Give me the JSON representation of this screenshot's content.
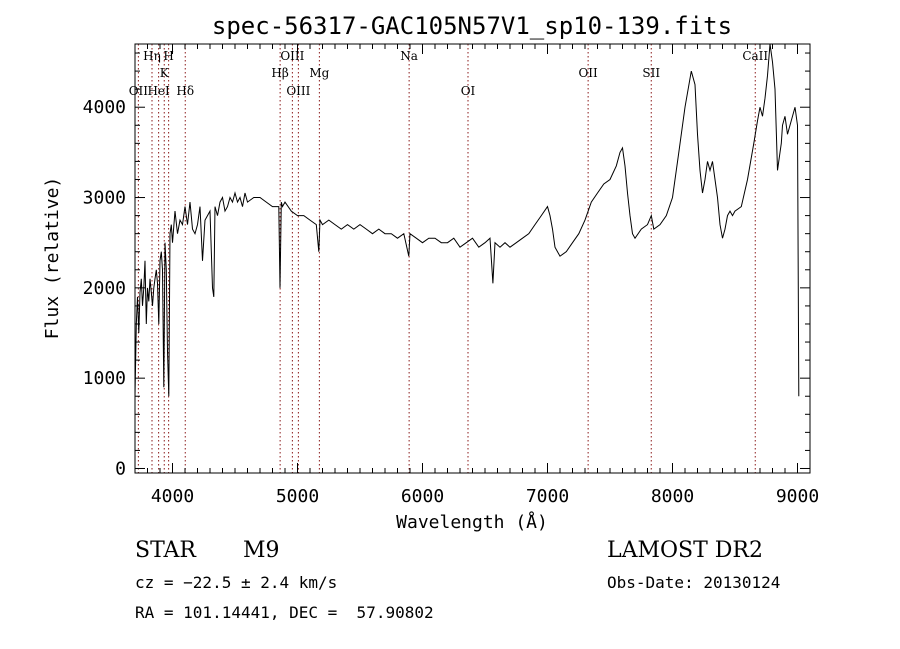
{
  "chart_data": {
    "type": "line",
    "title": "spec-56317-GAC105N57V1_sp10-139.fits",
    "xlabel": "Wavelength (Å)",
    "ylabel": "Flux (relative)",
    "xlim": [
      3700,
      9100
    ],
    "ylim": [
      -50,
      4700
    ],
    "xticks": [
      4000,
      5000,
      6000,
      7000,
      8000,
      9000
    ],
    "yticks": [
      0,
      1000,
      2000,
      3000,
      4000
    ],
    "grid": false,
    "line_color": "#000000",
    "marker_color": "#8b1a1a",
    "lines": [
      {
        "label": "Hη",
        "wave": 3836,
        "row": 0
      },
      {
        "label": "H",
        "wave": 3969,
        "row": 0
      },
      {
        "label": "K",
        "wave": 3934,
        "row": 1
      },
      {
        "label": "OII",
        "wave": 3727,
        "row": 2
      },
      {
        "label": "HeI",
        "wave": 3889,
        "row": 2
      },
      {
        "label": "Hδ",
        "wave": 4102,
        "row": 2
      },
      {
        "label": "OIII",
        "wave": 4959,
        "row": 0
      },
      {
        "label": "Hβ",
        "wave": 4861,
        "row": 1
      },
      {
        "label": "Mg",
        "wave": 5175,
        "row": 1
      },
      {
        "label": "OIII",
        "wave": 5007,
        "row": 2
      },
      {
        "label": "Na",
        "wave": 5893,
        "row": 0
      },
      {
        "label": "OI",
        "wave": 6364,
        "row": 2
      },
      {
        "label": "OII",
        "wave": 7325,
        "row": 1
      },
      {
        "label": "SII",
        "wave": 7830,
        "row": 1
      },
      {
        "label": "CaII",
        "wave": 8662,
        "row": 0
      }
    ],
    "series": [
      {
        "x": [
          3700,
          3710,
          3720,
          3730,
          3740,
          3750,
          3760,
          3770,
          3780,
          3790,
          3800,
          3810,
          3820,
          3830,
          3840,
          3850,
          3860,
          3870,
          3880,
          3890,
          3900,
          3910,
          3920,
          3930,
          3940,
          3950,
          3960,
          3970,
          3980,
          3990,
          4000,
          4020,
          4040,
          4060,
          4080,
          4100,
          4120,
          4140,
          4160,
          4180,
          4200,
          4220,
          4240,
          4260,
          4280,
          4300,
          4320,
          4330,
          4340,
          4360,
          4380,
          4400,
          4420,
          4440,
          4460,
          4480,
          4500,
          4520,
          4540,
          4560,
          4580,
          4600,
          4650,
          4700,
          4750,
          4800,
          4850,
          4860,
          4870,
          4880,
          4900,
          4950,
          5000,
          5050,
          5100,
          5150,
          5170,
          5180,
          5200,
          5250,
          5300,
          5350,
          5400,
          5450,
          5500,
          5550,
          5600,
          5650,
          5700,
          5750,
          5800,
          5850,
          5890,
          5900,
          5950,
          6000,
          6050,
          6100,
          6150,
          6200,
          6250,
          6300,
          6350,
          6400,
          6450,
          6500,
          6540,
          6563,
          6580,
          6620,
          6660,
          6700,
          6750,
          6800,
          6850,
          6900,
          6950,
          7000,
          7020,
          7040,
          7060,
          7080,
          7100,
          7150,
          7200,
          7250,
          7300,
          7350,
          7400,
          7450,
          7500,
          7550,
          7580,
          7600,
          7620,
          7640,
          7660,
          7680,
          7700,
          7750,
          7800,
          7830,
          7850,
          7900,
          7950,
          8000,
          8050,
          8100,
          8150,
          8180,
          8200,
          8220,
          8240,
          8260,
          8280,
          8300,
          8320,
          8340,
          8360,
          8380,
          8400,
          8420,
          8440,
          8460,
          8480,
          8500,
          8550,
          8600,
          8650,
          8680,
          8700,
          8720,
          8740,
          8760,
          8780,
          8800,
          8820,
          8840,
          8860,
          8870,
          8880,
          8900,
          8920,
          8940,
          8960,
          8980,
          9000,
          9010
        ],
        "y": [
          800,
          1600,
          1900,
          1500,
          1950,
          2100,
          1800,
          2000,
          2300,
          1600,
          2000,
          1850,
          2100,
          1950,
          1800,
          2000,
          2100,
          2200,
          2050,
          1600,
          2300,
          2400,
          2200,
          900,
          2500,
          2200,
          1300,
          800,
          2600,
          2700,
          2500,
          2850,
          2600,
          2750,
          2700,
          2900,
          2700,
          2950,
          2650,
          2600,
          2700,
          2900,
          2300,
          2750,
          2800,
          2850,
          2000,
          1900,
          2900,
          2800,
          2950,
          3000,
          2850,
          2900,
          3000,
          2950,
          3050,
          2950,
          3000,
          2900,
          3050,
          2950,
          3000,
          3000,
          2950,
          2900,
          2900,
          2000,
          2950,
          2900,
          2950,
          2850,
          2800,
          2800,
          2750,
          2700,
          2400,
          2750,
          2700,
          2750,
          2700,
          2650,
          2700,
          2650,
          2700,
          2650,
          2600,
          2650,
          2600,
          2600,
          2550,
          2600,
          2350,
          2600,
          2550,
          2500,
          2550,
          2550,
          2500,
          2500,
          2550,
          2450,
          2500,
          2550,
          2450,
          2500,
          2550,
          2050,
          2500,
          2450,
          2500,
          2450,
          2500,
          2550,
          2600,
          2700,
          2800,
          2900,
          2800,
          2650,
          2450,
          2400,
          2350,
          2400,
          2500,
          2600,
          2750,
          2950,
          3050,
          3150,
          3200,
          3350,
          3500,
          3550,
          3350,
          3050,
          2800,
          2600,
          2550,
          2650,
          2700,
          2800,
          2650,
          2700,
          2800,
          3000,
          3500,
          4000,
          4400,
          4250,
          3700,
          3300,
          3050,
          3200,
          3400,
          3300,
          3400,
          3200,
          3000,
          2700,
          2550,
          2650,
          2800,
          2850,
          2800,
          2850,
          2900,
          3200,
          3600,
          3850,
          4000,
          3900,
          4100,
          4350,
          4700,
          4500,
          4200,
          3300,
          3500,
          3600,
          3800,
          3900,
          3700,
          3800,
          3900,
          4000,
          3800,
          800
        ]
      }
    ]
  },
  "info": {
    "object_class": "STAR",
    "subclass": "M9",
    "survey": "LAMOST DR2",
    "redshift": "cz = −22.5 ± 2.4 km/s",
    "obs_date": "Obs-Date: 20130124",
    "coords": "RA = 101.14441, DEC =  57.90802"
  }
}
